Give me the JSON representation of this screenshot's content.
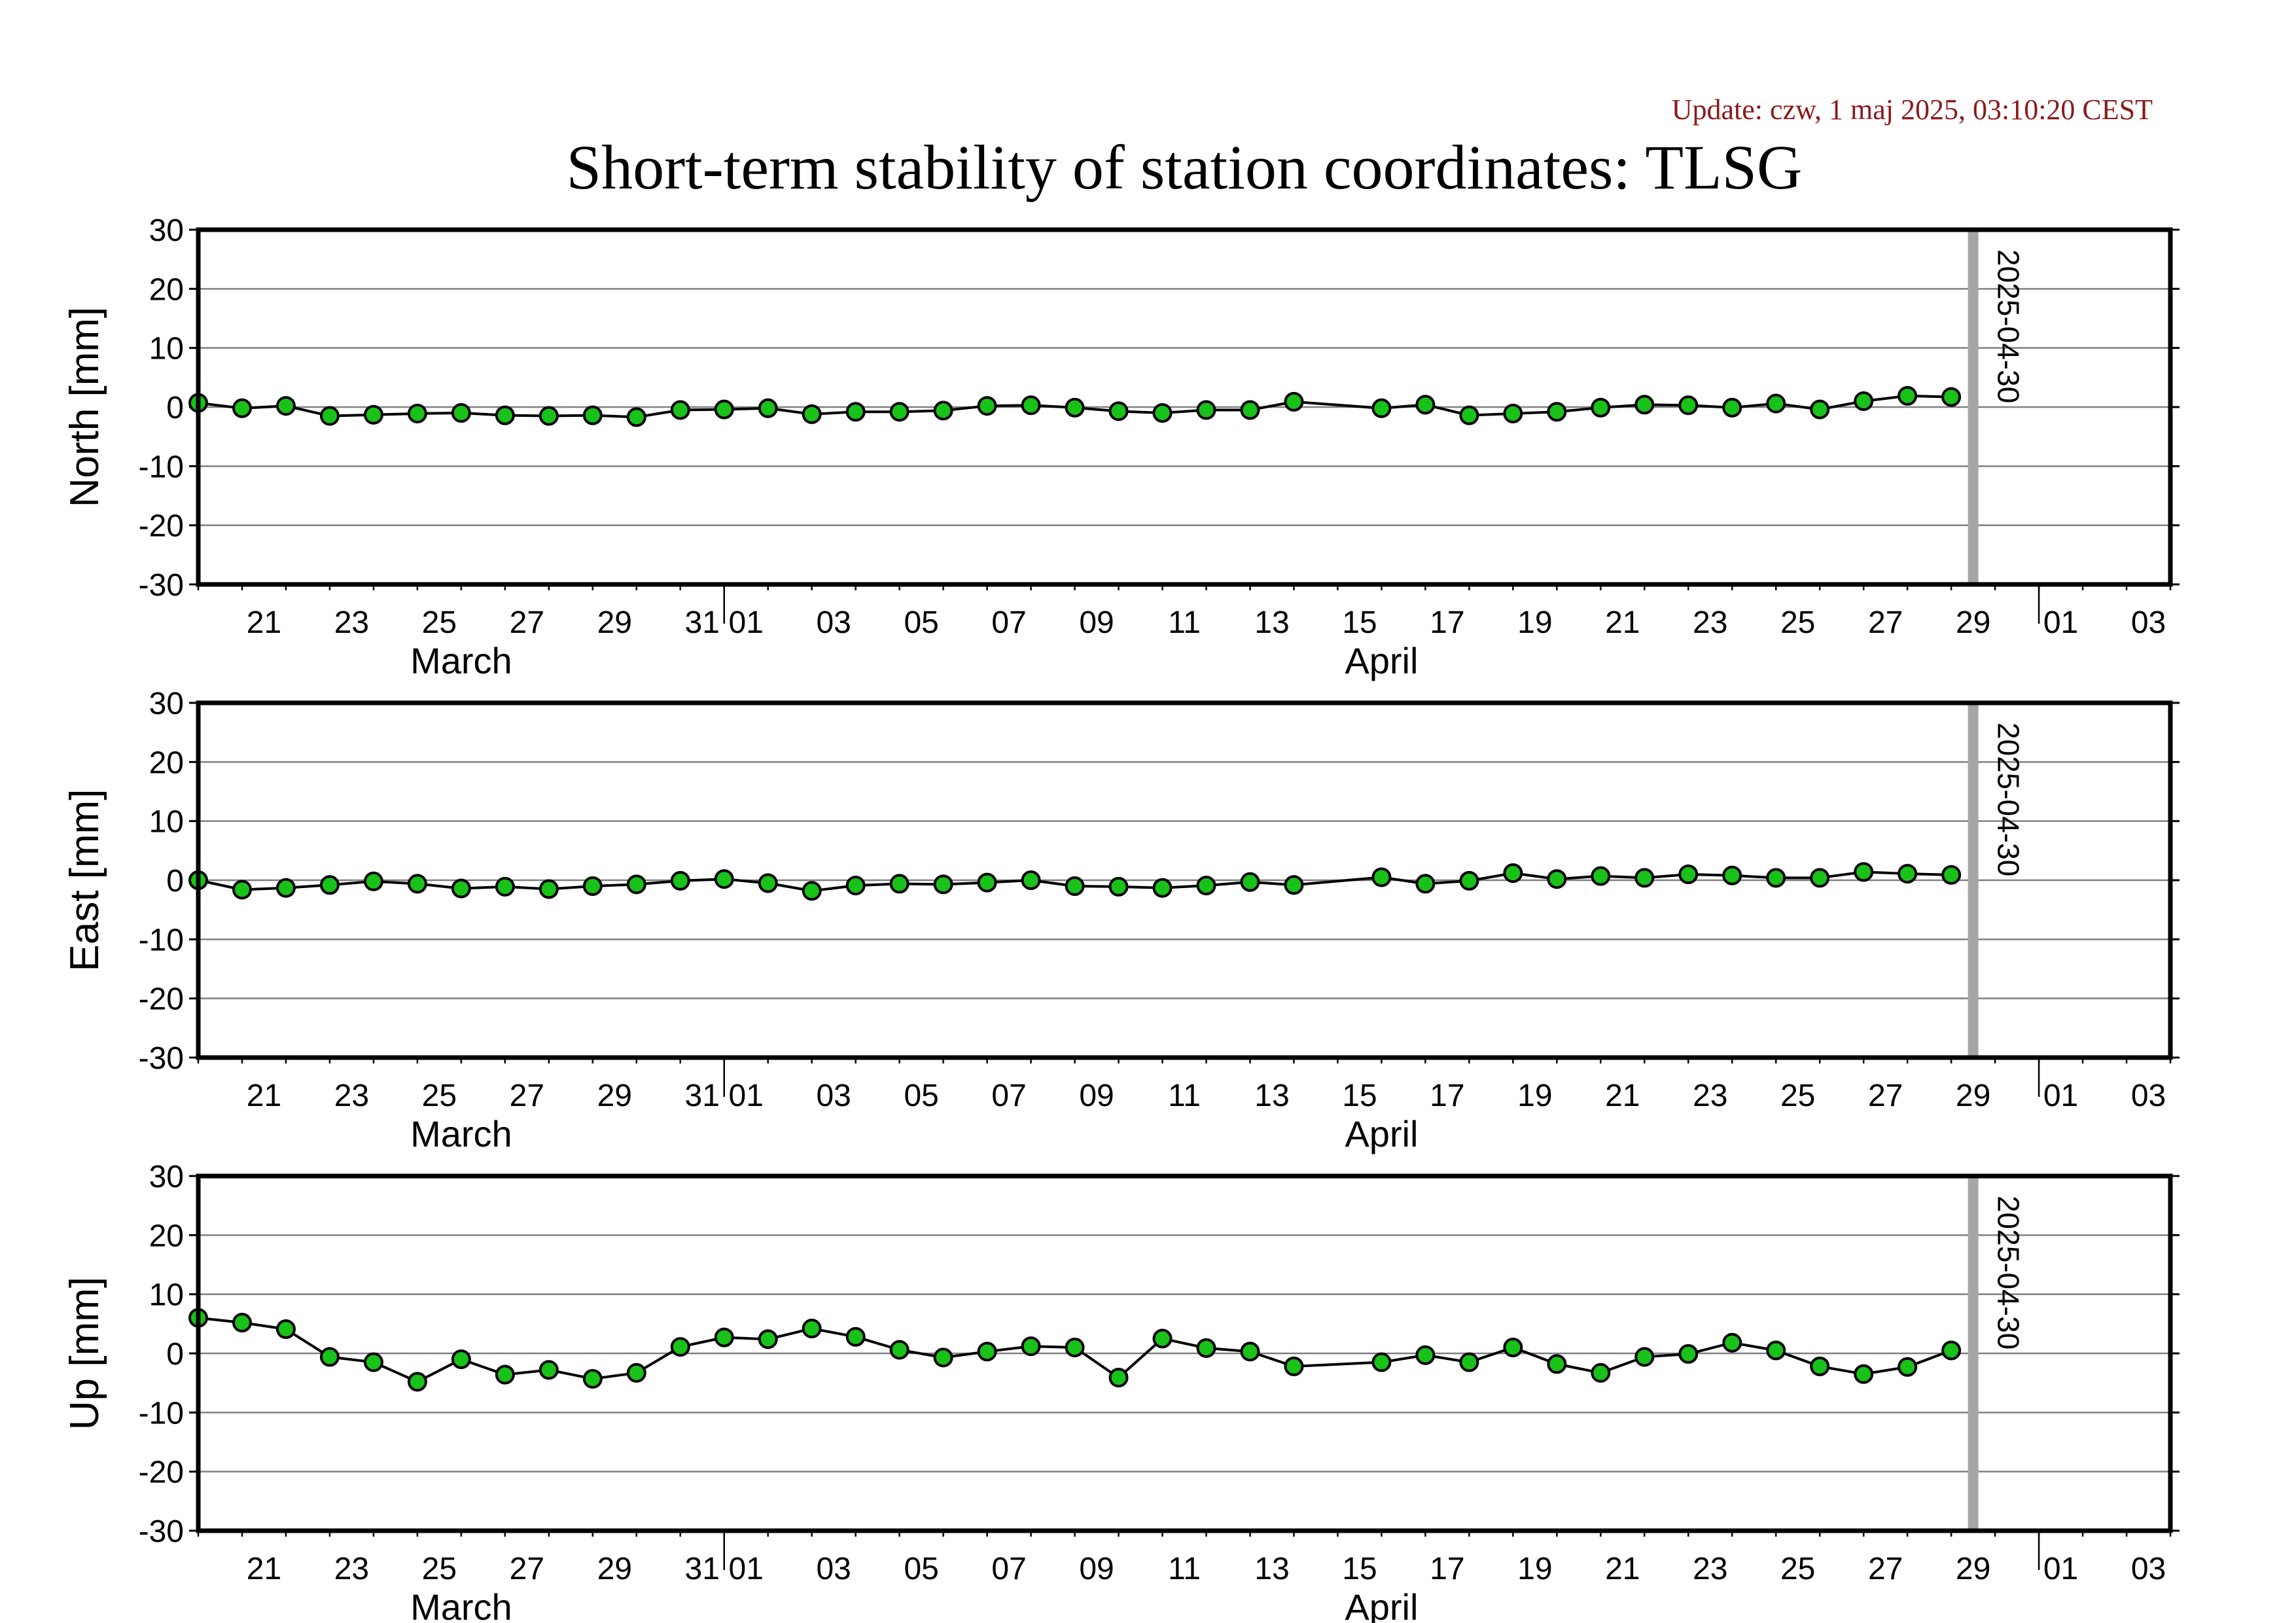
{
  "update_text": "Update: czw, 1 maj 2025, 03:10:20 CEST",
  "title": "Short-term stability of station coordinates: TLSG",
  "colors": {
    "update_text": "#8b1a1a",
    "marker_fill": "#19c219",
    "marker_stroke": "#000000",
    "line": "#000000",
    "grid": "#808080",
    "current_date_line": "#a6a6a6"
  },
  "chart_data": [
    {
      "type": "line",
      "ylabel": "North [mm]",
      "ylim": [
        -30,
        30
      ],
      "yticks": [
        30,
        20,
        10,
        0,
        -10,
        -20,
        -30
      ],
      "xlim": [
        "2025-03-20",
        "2025-05-04"
      ],
      "x_tick_labels": [
        "21",
        "23",
        "25",
        "27",
        "29",
        "31",
        "01",
        "03",
        "05",
        "07",
        "09",
        "11",
        "13",
        "15",
        "17",
        "19",
        "21",
        "23",
        "25",
        "27",
        "29",
        "01",
        "03"
      ],
      "month_labels": [
        "March",
        "April"
      ],
      "grid": true,
      "marker_line_date": "2025-04-30",
      "marker_line_label": "2025-04-30",
      "series": [
        {
          "x": [
            "2025-03-20",
            "2025-03-21",
            "2025-03-22",
            "2025-03-23",
            "2025-03-24",
            "2025-03-25",
            "2025-03-26",
            "2025-03-27",
            "2025-03-28",
            "2025-03-29",
            "2025-03-30",
            "2025-03-31",
            "2025-04-01",
            "2025-04-02",
            "2025-04-03",
            "2025-04-04",
            "2025-04-05",
            "2025-04-06",
            "2025-04-07",
            "2025-04-08",
            "2025-04-09",
            "2025-04-10",
            "2025-04-11",
            "2025-04-12",
            "2025-04-13",
            "2025-04-14",
            "2025-04-16",
            "2025-04-17",
            "2025-04-18",
            "2025-04-19",
            "2025-04-20",
            "2025-04-21",
            "2025-04-22",
            "2025-04-23",
            "2025-04-24",
            "2025-04-25",
            "2025-04-26",
            "2025-04-27",
            "2025-04-28",
            "2025-04-29"
          ],
          "values": [
            0.7,
            -0.2,
            0.2,
            -1.5,
            -1.3,
            -1.1,
            -1.0,
            -1.4,
            -1.5,
            -1.4,
            -1.7,
            -0.5,
            -0.4,
            -0.2,
            -1.2,
            -0.8,
            -0.8,
            -0.6,
            0.2,
            0.3,
            -0.1,
            -0.7,
            -1.0,
            -0.5,
            -0.5,
            0.9,
            -0.2,
            0.4,
            -1.4,
            -1.1,
            -0.8,
            -0.1,
            0.4,
            0.3,
            -0.1,
            0.6,
            -0.4,
            1.0,
            1.9,
            1.7
          ]
        }
      ]
    },
    {
      "type": "line",
      "ylabel": "East [mm]",
      "ylim": [
        -30,
        30
      ],
      "yticks": [
        30,
        20,
        10,
        0,
        -10,
        -20,
        -30
      ],
      "xlim": [
        "2025-03-20",
        "2025-05-04"
      ],
      "x_tick_labels": [
        "21",
        "23",
        "25",
        "27",
        "29",
        "31",
        "01",
        "03",
        "05",
        "07",
        "09",
        "11",
        "13",
        "15",
        "17",
        "19",
        "21",
        "23",
        "25",
        "27",
        "29",
        "01",
        "03"
      ],
      "month_labels": [
        "March",
        "April"
      ],
      "grid": true,
      "marker_line_date": "2025-04-30",
      "marker_line_label": "2025-04-30",
      "series": [
        {
          "x": [
            "2025-03-20",
            "2025-03-21",
            "2025-03-22",
            "2025-03-23",
            "2025-03-24",
            "2025-03-25",
            "2025-03-26",
            "2025-03-27",
            "2025-03-28",
            "2025-03-29",
            "2025-03-30",
            "2025-03-31",
            "2025-04-01",
            "2025-04-02",
            "2025-04-03",
            "2025-04-04",
            "2025-04-05",
            "2025-04-06",
            "2025-04-07",
            "2025-04-08",
            "2025-04-09",
            "2025-04-10",
            "2025-04-11",
            "2025-04-12",
            "2025-04-13",
            "2025-04-14",
            "2025-04-16",
            "2025-04-17",
            "2025-04-18",
            "2025-04-19",
            "2025-04-20",
            "2025-04-21",
            "2025-04-22",
            "2025-04-23",
            "2025-04-24",
            "2025-04-25",
            "2025-04-26",
            "2025-04-27",
            "2025-04-28",
            "2025-04-29"
          ],
          "values": [
            0.0,
            -1.6,
            -1.3,
            -0.8,
            -0.2,
            -0.6,
            -1.4,
            -1.1,
            -1.5,
            -1.0,
            -0.7,
            -0.1,
            0.2,
            -0.5,
            -1.8,
            -0.9,
            -0.6,
            -0.7,
            -0.4,
            -0.0,
            -1.0,
            -1.1,
            -1.3,
            -0.9,
            -0.3,
            -0.8,
            0.5,
            -0.6,
            -0.1,
            1.2,
            0.2,
            0.7,
            0.4,
            1.0,
            0.8,
            0.4,
            0.4,
            1.4,
            1.1,
            0.9
          ]
        }
      ]
    },
    {
      "type": "line",
      "ylabel": "Up [mm]",
      "ylim": [
        -30,
        30
      ],
      "yticks": [
        30,
        20,
        10,
        0,
        -10,
        -20,
        -30
      ],
      "xlim": [
        "2025-03-20",
        "2025-05-04"
      ],
      "x_tick_labels": [
        "21",
        "23",
        "25",
        "27",
        "29",
        "31",
        "01",
        "03",
        "05",
        "07",
        "09",
        "11",
        "13",
        "15",
        "17",
        "19",
        "21",
        "23",
        "25",
        "27",
        "29",
        "01",
        "03"
      ],
      "month_labels": [
        "March",
        "April"
      ],
      "grid": true,
      "marker_line_date": "2025-04-30",
      "marker_line_label": "2025-04-30",
      "series": [
        {
          "x": [
            "2025-03-20",
            "2025-03-21",
            "2025-03-22",
            "2025-03-23",
            "2025-03-24",
            "2025-03-25",
            "2025-03-26",
            "2025-03-27",
            "2025-03-28",
            "2025-03-29",
            "2025-03-30",
            "2025-03-31",
            "2025-04-01",
            "2025-04-02",
            "2025-04-03",
            "2025-04-04",
            "2025-04-05",
            "2025-04-06",
            "2025-04-07",
            "2025-04-08",
            "2025-04-09",
            "2025-04-10",
            "2025-04-11",
            "2025-04-12",
            "2025-04-13",
            "2025-04-14",
            "2025-04-16",
            "2025-04-17",
            "2025-04-18",
            "2025-04-19",
            "2025-04-20",
            "2025-04-21",
            "2025-04-22",
            "2025-04-23",
            "2025-04-24",
            "2025-04-25",
            "2025-04-26",
            "2025-04-27",
            "2025-04-28",
            "2025-04-29"
          ],
          "values": [
            6.0,
            5.2,
            4.1,
            -0.6,
            -1.5,
            -4.8,
            -1.0,
            -3.6,
            -2.8,
            -4.3,
            -3.3,
            1.1,
            2.7,
            2.4,
            4.2,
            2.8,
            0.6,
            -0.7,
            0.3,
            1.2,
            1.0,
            -4.1,
            2.5,
            0.9,
            0.3,
            -2.2,
            -1.5,
            -0.3,
            -1.5,
            1.0,
            -1.8,
            -3.3,
            -0.6,
            -0.1,
            1.8,
            0.5,
            -2.2,
            -3.5,
            -2.3,
            0.5
          ]
        }
      ]
    }
  ]
}
